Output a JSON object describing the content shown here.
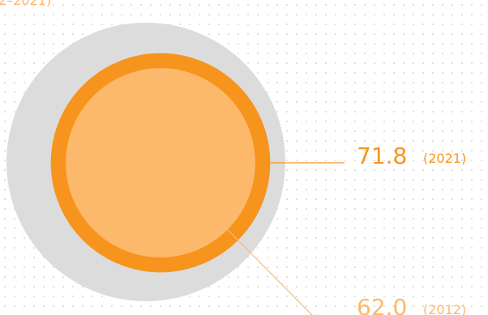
{
  "chart_data": {
    "type": "nested-circle",
    "subtitle": "2–2021)",
    "categories": [
      "(2021)",
      "(2012)"
    ],
    "values": [
      71.8,
      62.0
    ],
    "value_labels": [
      "71.8",
      "62.0"
    ],
    "colors": [
      "#f7941d",
      "#fdb96b"
    ]
  }
}
